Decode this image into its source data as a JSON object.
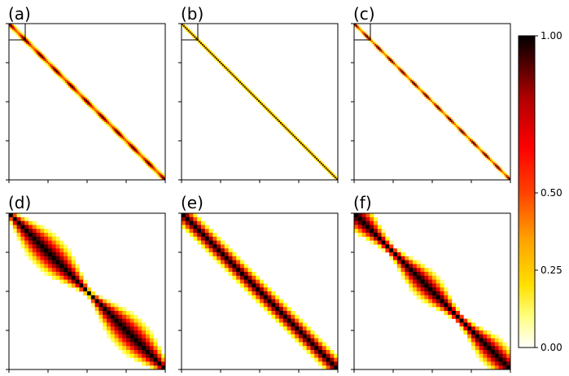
{
  "chart_data": {
    "type": "heatmap",
    "colormap": "hot_r",
    "panels": [
      {
        "label": "(a)",
        "grid": 100,
        "pattern": "narrow-diagonal-blocks",
        "inset_box": true
      },
      {
        "label": "(b)",
        "grid": 100,
        "pattern": "narrow-diagonal",
        "inset_box": true
      },
      {
        "label": "(c)",
        "grid": 100,
        "pattern": "narrow-diagonal-wavy",
        "inset_box": true
      },
      {
        "label": "(d)",
        "grid": 40,
        "pattern": "two-lobes-pinched"
      },
      {
        "label": "(e)",
        "grid": 40,
        "pattern": "uniform-band"
      },
      {
        "label": "(f)",
        "grid": 40,
        "pattern": "wavy-band"
      }
    ],
    "colorbar": {
      "range": [
        0,
        1
      ],
      "ticks": [
        0.0,
        0.25,
        0.5,
        1.0
      ],
      "tick_labels": [
        "0.00",
        "0.25",
        "0.50",
        "1.00"
      ],
      "scale": "nonlinear"
    }
  }
}
